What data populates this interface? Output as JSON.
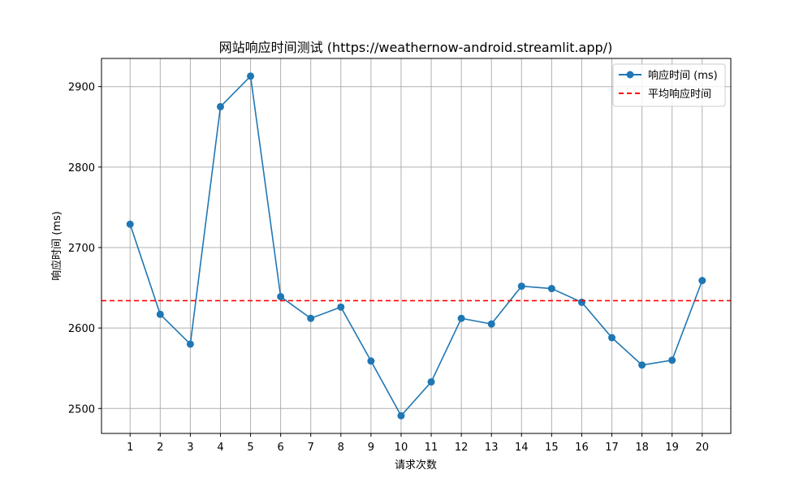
{
  "chart_data": {
    "type": "line",
    "title": "网站响应时间测试 (https://weathernow-android.streamlit.app/)",
    "xlabel": "请求次数",
    "ylabel": "响应时间 (ms)",
    "x": [
      1,
      2,
      3,
      4,
      5,
      6,
      7,
      8,
      9,
      10,
      11,
      12,
      13,
      14,
      15,
      16,
      17,
      18,
      19,
      20
    ],
    "xticks": [
      "1",
      "2",
      "3",
      "4",
      "5",
      "6",
      "7",
      "8",
      "9",
      "10",
      "11",
      "12",
      "13",
      "14",
      "15",
      "16",
      "17",
      "18",
      "19",
      "20"
    ],
    "yticks": [
      "2500",
      "2600",
      "2700",
      "2800",
      "2900"
    ],
    "ytick_values": [
      2500,
      2600,
      2700,
      2800,
      2900
    ],
    "xlim": [
      0.05,
      20.95
    ],
    "ylim": [
      2469,
      2935
    ],
    "grid": true,
    "legend_position": "top-right",
    "series": [
      {
        "name": "响应时间 (ms)",
        "style": "solid-line-with-markers",
        "color": "#1f77b4",
        "values": [
          2729,
          2617,
          2580,
          2875,
          2913,
          2639,
          2612,
          2626,
          2559,
          2491,
          2533,
          2612,
          2605,
          2652,
          2649,
          2632,
          2588,
          2554,
          2560,
          2659
        ]
      },
      {
        "name": "平均响应时间",
        "style": "dashed-horizontal",
        "color": "#ff0000",
        "value": 2634
      }
    ],
    "grid_color": "#b0b0b0"
  }
}
